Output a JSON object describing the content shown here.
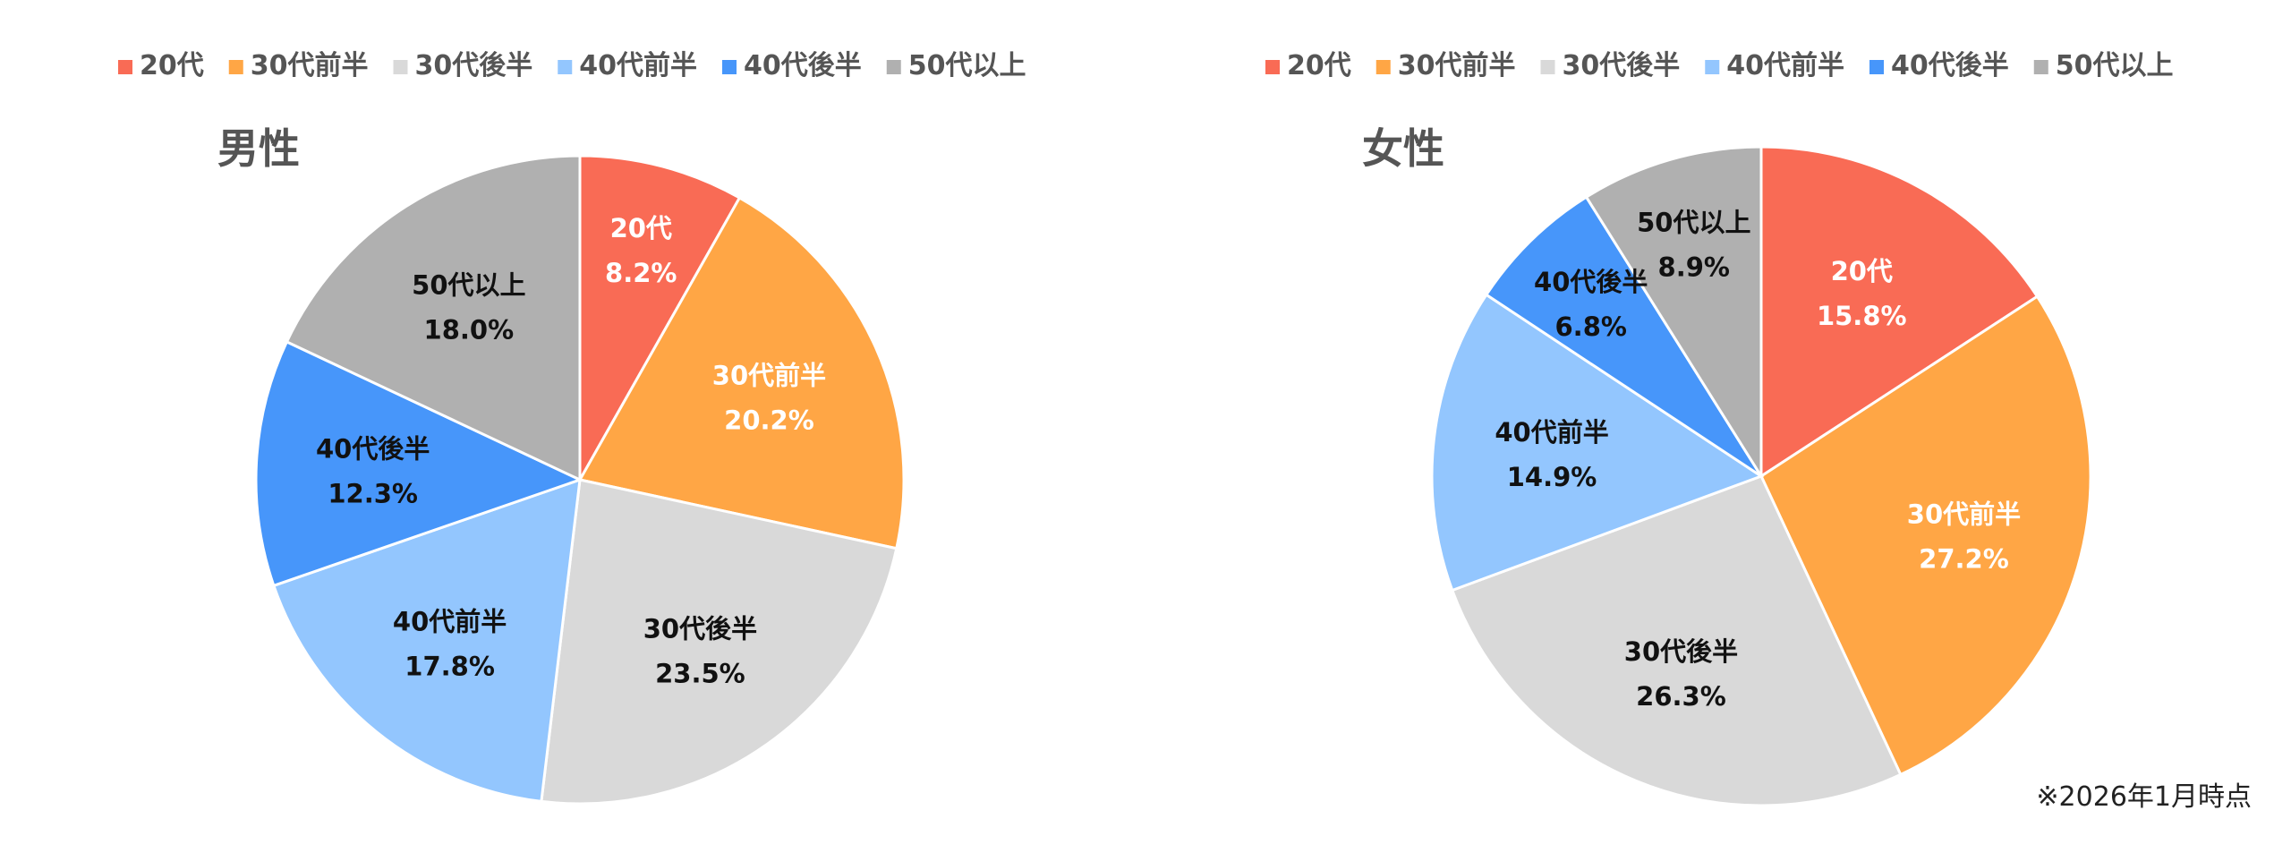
{
  "chart_data": [
    {
      "type": "pie",
      "title": "男性",
      "categories": [
        "20代",
        "30代前半",
        "30代後半",
        "40代前半",
        "40代後半",
        "50代以上"
      ],
      "values": [
        8.2,
        20.2,
        23.5,
        17.8,
        12.3,
        18.0
      ],
      "value_labels": [
        "8.2%",
        "20.2%",
        "23.5%",
        "17.8%",
        "12.3%",
        "18.0%"
      ],
      "legend_position": "top",
      "start_angle": "12 o'clock",
      "direction": "clockwise"
    },
    {
      "type": "pie",
      "title": "女性",
      "categories": [
        "20代",
        "30代前半",
        "30代後半",
        "40代前半",
        "40代後半",
        "50代以上"
      ],
      "values": [
        15.8,
        27.2,
        26.3,
        14.9,
        6.8,
        8.9
      ],
      "value_labels": [
        "15.8%",
        "27.2%",
        "26.3%",
        "14.9%",
        "6.8%",
        "8.9%"
      ],
      "legend_position": "top",
      "start_angle": "12 o'clock",
      "direction": "clockwise"
    }
  ],
  "colors": [
    "#f96b55",
    "#ffa645",
    "#d9d9d9",
    "#93c6fe",
    "#4796fa",
    "#b0b0b0"
  ],
  "label_colors": [
    "#ffffff",
    "#ffffff",
    "#111111",
    "#111111",
    "#111111",
    "#111111"
  ],
  "footnote": "※2026年1月時点"
}
